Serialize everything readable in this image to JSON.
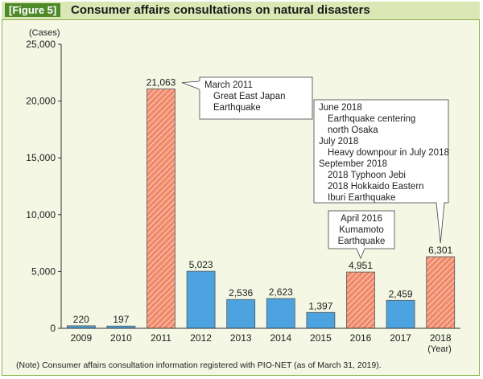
{
  "figure": {
    "label": "[Figure 5]",
    "title": "Consumer affairs consultations on natural disasters",
    "note": "(Note) Consumer affairs consultation information registered with PIO-NET (as of March 31, 2019)."
  },
  "chart_data": {
    "type": "bar",
    "title": "Consumer affairs consultations on natural disasters",
    "ylabel": "(Cases)",
    "xlabel": "(Year)",
    "ylim": [
      0,
      25000
    ],
    "yticks": [
      0,
      5000,
      10000,
      15000,
      20000,
      25000
    ],
    "ytick_labels": [
      "0",
      "5,000",
      "10,000",
      "15,000",
      "20,000",
      "25,000"
    ],
    "categories": [
      "2009",
      "2010",
      "2011",
      "2012",
      "2013",
      "2014",
      "2015",
      "2016",
      "2017",
      "2018"
    ],
    "values": [
      220,
      197,
      21063,
      5023,
      2536,
      2623,
      1397,
      4951,
      2459,
      6301
    ],
    "value_labels": [
      "220",
      "197",
      "21,063",
      "5,023",
      "2,536",
      "2,623",
      "1,397",
      "4,951",
      "2,459",
      "6,301"
    ],
    "highlighted": [
      false,
      false,
      true,
      false,
      false,
      false,
      false,
      true,
      false,
      true
    ],
    "colors": {
      "normal": "#4da3df",
      "highlight": "#f08a6a",
      "highlight_stripe": "#ffffff",
      "frame": "#8ab34a",
      "background": "#f3f7e4"
    },
    "annotations": [
      {
        "target": "2011",
        "lines": [
          "March 2011",
          "Great East Japan",
          "Earthquake"
        ]
      },
      {
        "target": "2016",
        "lines": [
          "April 2016",
          "Kumamoto",
          "Earthquake"
        ]
      },
      {
        "target": "2018",
        "lines": [
          "June 2018",
          "Earthquake centering",
          "north Osaka",
          "July 2018",
          "Heavy downpour in July 2018",
          "September 2018",
          "2018 Typhoon Jebi",
          "2018 Hokkaido Eastern",
          "Iburi Earthquake"
        ]
      }
    ]
  }
}
